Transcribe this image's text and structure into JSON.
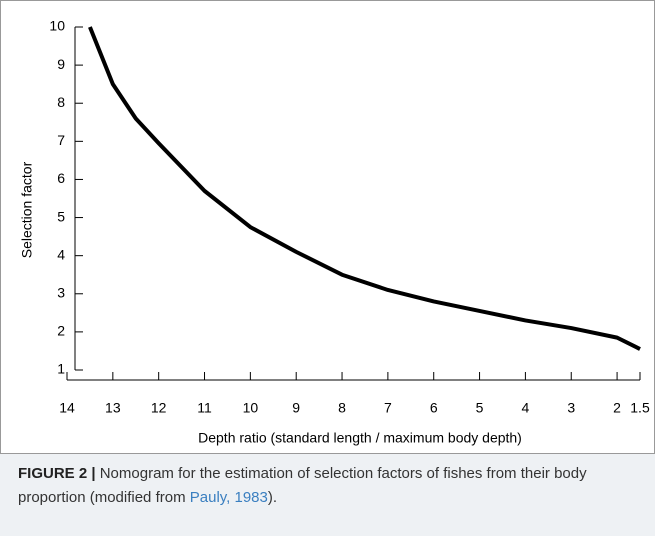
{
  "chart_data": {
    "type": "line",
    "xlabel": "Depth ratio (standard length / maximum body depth)",
    "ylabel": "Selection factor",
    "series": [
      {
        "x": [
          13.5,
          13,
          12.5,
          12,
          11,
          10,
          9,
          8,
          7,
          6,
          5,
          4,
          3,
          2,
          1.5
        ],
        "values": [
          10,
          8.5,
          7.6,
          6.95,
          5.7,
          4.75,
          4.1,
          3.5,
          3.1,
          2.8,
          2.55,
          2.3,
          2.1,
          1.85,
          1.55
        ],
        "color": "#000000"
      }
    ],
    "xlim": [
      14,
      1.5
    ],
    "xticks": [
      14,
      13,
      12,
      11,
      10,
      9,
      8,
      7,
      6,
      5,
      4,
      3,
      2,
      1.5
    ],
    "ylim": [
      1,
      10
    ],
    "yticks": [
      1,
      2,
      3,
      4,
      5,
      6,
      7,
      8,
      9,
      10
    ],
    "grid": false
  },
  "caption": {
    "label": "FIGURE 2 |",
    "text": "Nomogram for the estimation of selection factors of fishes from their body proportion (modified from ",
    "link": "Pauly, 1983",
    "end": ")."
  }
}
